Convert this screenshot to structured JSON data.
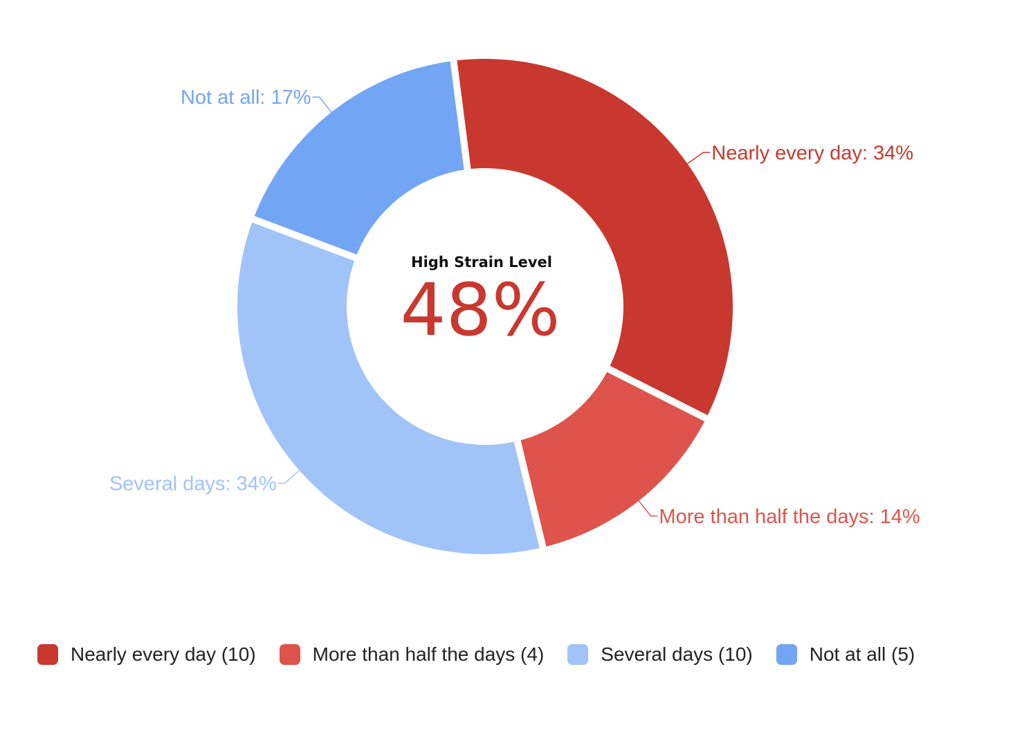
{
  "chart_data": {
    "type": "pie",
    "variant": "donut",
    "center": {
      "label": "High Strain Level",
      "value": "48%",
      "value_color": "#c8382f"
    },
    "slices": [
      {
        "name": "Nearly every day",
        "count": 10,
        "percent": 34,
        "color": "#c8382f",
        "label": "Nearly every day: 34%",
        "legend": "Nearly every day (10)"
      },
      {
        "name": "More than half the days",
        "count": 4,
        "percent": 14,
        "color": "#de534c",
        "label": "More than half the days: 14%",
        "legend": "More than half the days (4)"
      },
      {
        "name": "Several days",
        "count": 10,
        "percent": 34,
        "color": "#a0c4f7",
        "label": "Several days: 34%",
        "legend": "Several days (10)"
      },
      {
        "name": "Not at all",
        "count": 5,
        "percent": 17,
        "color": "#73a5f5",
        "label": "Not at all: 17%",
        "legend": "Not at all (5)"
      }
    ],
    "legend_position": "bottom"
  }
}
